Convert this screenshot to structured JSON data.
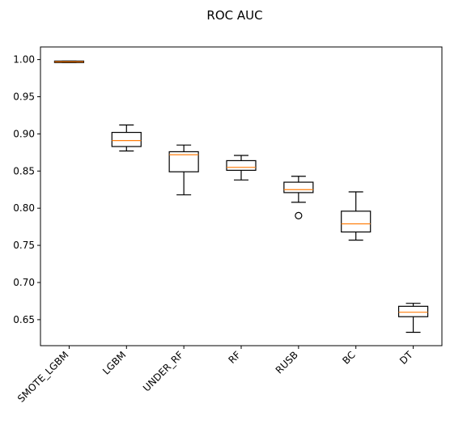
{
  "chart_data": {
    "type": "boxplot",
    "title": "ROC AUC",
    "xlabel": "",
    "ylabel": "",
    "categories": [
      "SMOTE_LGBM",
      "LGBM",
      "UNDER_RF",
      "RF",
      "RUSB",
      "BC",
      "DT"
    ],
    "boxes": [
      {
        "category": "SMOTE_LGBM",
        "whisker_low": 0.996,
        "q1": 0.996,
        "median": 0.997,
        "q3": 0.998,
        "whisker_high": 0.998,
        "outliers": []
      },
      {
        "category": "LGBM",
        "whisker_low": 0.877,
        "q1": 0.883,
        "median": 0.891,
        "q3": 0.902,
        "whisker_high": 0.912,
        "outliers": []
      },
      {
        "category": "UNDER_RF",
        "whisker_low": 0.818,
        "q1": 0.849,
        "median": 0.872,
        "q3": 0.876,
        "whisker_high": 0.885,
        "outliers": []
      },
      {
        "category": "RF",
        "whisker_low": 0.838,
        "q1": 0.851,
        "median": 0.855,
        "q3": 0.864,
        "whisker_high": 0.871,
        "outliers": []
      },
      {
        "category": "RUSB",
        "whisker_low": 0.808,
        "q1": 0.821,
        "median": 0.825,
        "q3": 0.835,
        "whisker_high": 0.843,
        "outliers": [
          0.79
        ]
      },
      {
        "category": "BC",
        "whisker_low": 0.757,
        "q1": 0.768,
        "median": 0.779,
        "q3": 0.796,
        "whisker_high": 0.822,
        "outliers": []
      },
      {
        "category": "DT",
        "whisker_low": 0.633,
        "q1": 0.654,
        "median": 0.66,
        "q3": 0.668,
        "whisker_high": 0.672,
        "outliers": []
      }
    ],
    "yticks": [
      0.65,
      0.7,
      0.75,
      0.8,
      0.85,
      0.9,
      0.95,
      1.0
    ],
    "ytick_labels": [
      "0.65",
      "0.70",
      "0.75",
      "0.80",
      "0.85",
      "0.90",
      "0.95",
      "1.00"
    ],
    "ylim": [
      0.615,
      1.017
    ],
    "grid": false,
    "box_color": "#000000",
    "median_color": "#ff7f0e"
  }
}
